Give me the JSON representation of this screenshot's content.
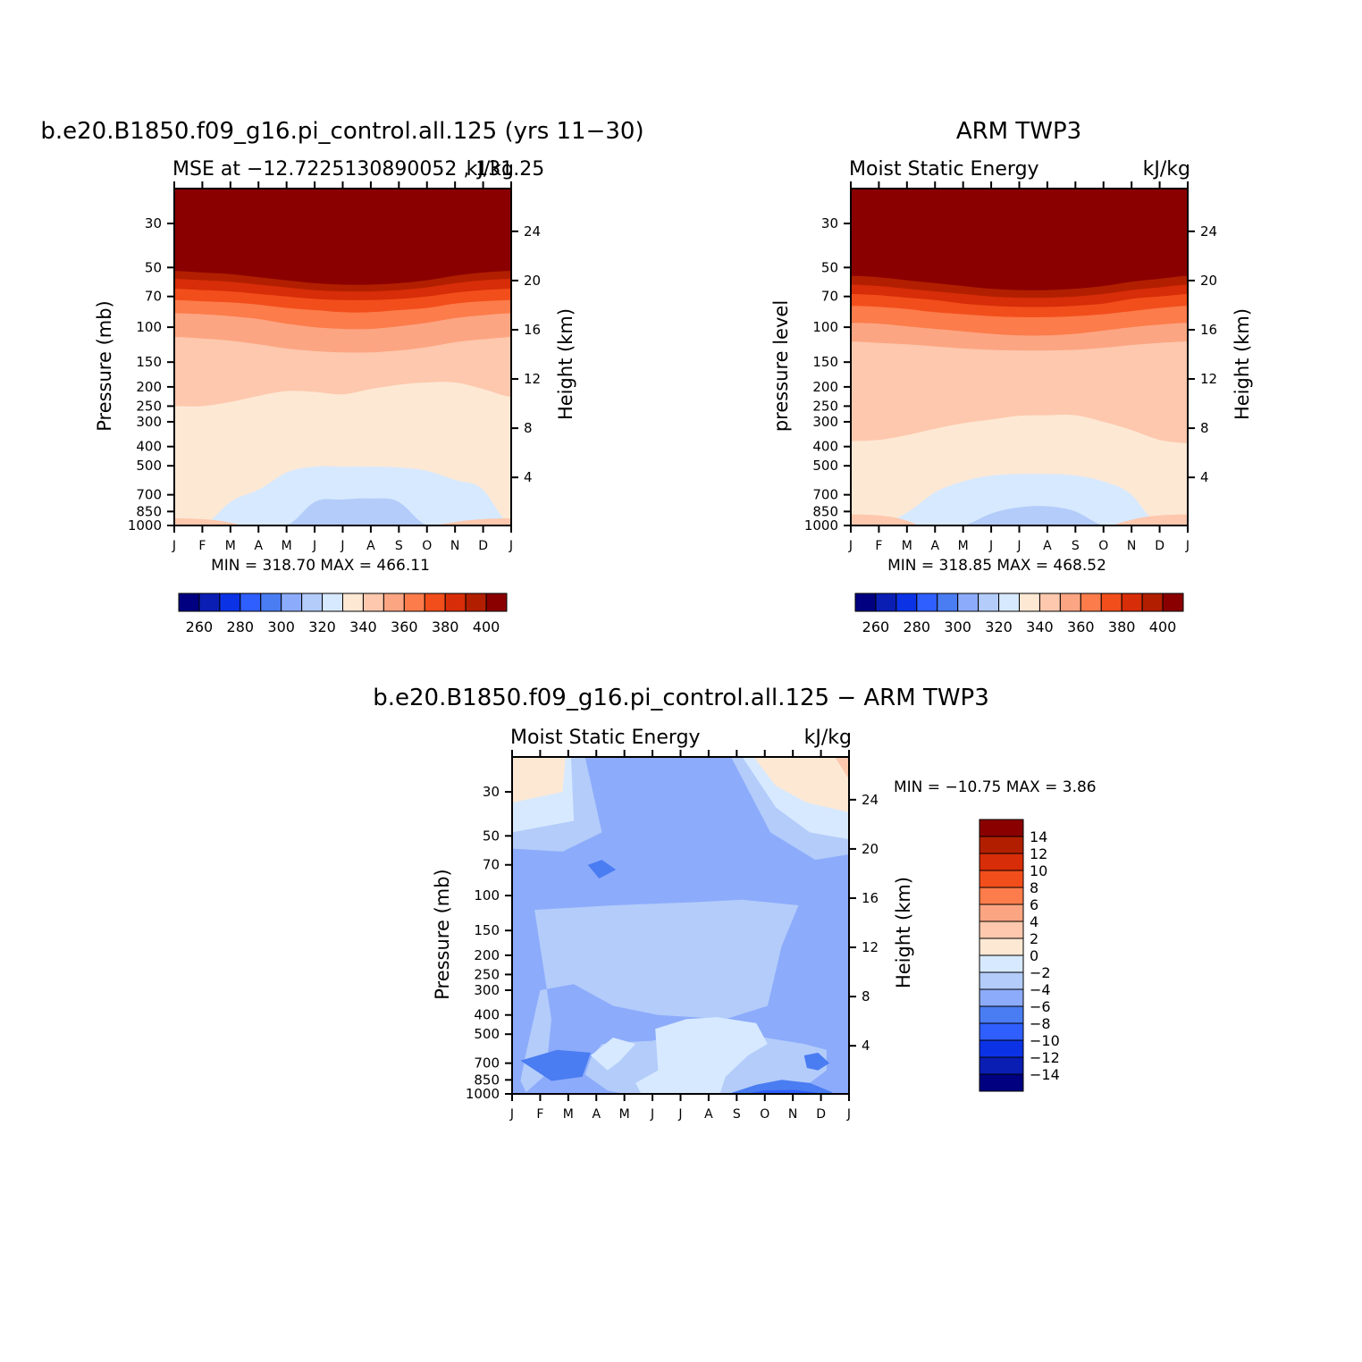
{
  "units": "kJ/kg",
  "months": [
    "J",
    "F",
    "M",
    "A",
    "M",
    "J",
    "J",
    "A",
    "S",
    "O",
    "N",
    "D",
    "J"
  ],
  "pressure_ticks": [
    30,
    50,
    70,
    100,
    150,
    200,
    250,
    300,
    400,
    500,
    700,
    850,
    1000
  ],
  "height_ticks": [
    4,
    8,
    12,
    16,
    20,
    24
  ],
  "chart_data": [
    {
      "type": "heatmap",
      "title": "b.e20.B1850.f09_g16.pi_control.all.125 (yrs 11−30)",
      "subtitle_left": "MSE at −12.7225130890052 , 131.25",
      "subtitle_right": "kJ/kg",
      "ylabel": "Pressure (mb)",
      "y2label": "Height (km)",
      "stats": "MIN = 318.70 MAX = 466.11",
      "min": 318.7,
      "max": 466.11,
      "ylim": [
        1000,
        20
      ],
      "y_scale": "log",
      "colorbar": {
        "levels": [
          250,
          260,
          270,
          280,
          290,
          300,
          310,
          320,
          330,
          340,
          350,
          360,
          370,
          380,
          390,
          400
        ],
        "labels": [
          "260",
          "280",
          "300",
          "320",
          "340",
          "360",
          "380",
          "400"
        ],
        "colors": [
          "#000080",
          "#0a1eb4",
          "#0b33e5",
          "#2f5fff",
          "#4a7cf2",
          "#8cabfb",
          "#b3ccfa",
          "#d7e9ff",
          "#fde8d4",
          "#fdc8ad",
          "#fca582",
          "#fc7c4b",
          "#f24e1b",
          "#d72d08",
          "#b21f00",
          "#8a0000"
        ],
        "placement": "bottom"
      },
      "fields": {
        "x": [
          0,
          1,
          2,
          3,
          4,
          5,
          6,
          7,
          8,
          9,
          10,
          11,
          12
        ],
        "boundary_values": [
          400,
          390,
          380,
          370,
          360,
          350,
          340,
          330,
          320
        ],
        "boundary_pressures": [
          [
            52,
            53,
            54,
            56,
            58,
            60,
            61,
            61,
            60,
            58,
            55,
            53,
            52
          ],
          [
            57,
            58,
            59,
            61,
            63,
            65,
            66,
            66,
            65,
            63,
            60,
            58,
            57
          ],
          [
            64,
            65,
            66,
            68,
            70,
            72,
            73,
            73,
            72,
            70,
            67,
            65,
            64
          ],
          [
            73,
            74,
            75,
            77,
            80,
            82,
            84,
            84,
            82,
            80,
            76,
            74,
            73
          ],
          [
            85,
            86,
            88,
            91,
            96,
            100,
            102,
            102,
            99,
            95,
            90,
            87,
            85
          ],
          [
            112,
            114,
            117,
            122,
            128,
            132,
            134,
            134,
            131,
            126,
            119,
            115,
            112
          ],
          [
            250,
            250,
            238,
            222,
            210,
            212,
            218,
            205,
            195,
            190,
            190,
            205,
            225
          ],
          [
            1000,
            1000,
            760,
            660,
            540,
            505,
            505,
            505,
            510,
            530,
            590,
            660,
            1000
          ],
          [
            1000,
            1000,
            1000,
            1000,
            1000,
            760,
            740,
            730,
            760,
            1000,
            1000,
            1000,
            1000
          ]
        ],
        "base_color_index": 8,
        "near_surface_warm_pressure": 920
      }
    },
    {
      "type": "heatmap",
      "title": "ARM TWP3",
      "subtitle_left": "Moist Static Energy",
      "subtitle_right": "kJ/kg",
      "ylabel": "pressure level",
      "y2label": "Height (km)",
      "stats": "MIN = 318.85 MAX = 468.52",
      "min": 318.85,
      "max": 468.52,
      "ylim": [
        1000,
        20
      ],
      "y_scale": "log",
      "colorbar": {
        "levels": [
          250,
          260,
          270,
          280,
          290,
          300,
          310,
          320,
          330,
          340,
          350,
          360,
          370,
          380,
          390,
          400
        ],
        "labels": [
          "260",
          "280",
          "300",
          "320",
          "340",
          "360",
          "380",
          "400"
        ],
        "colors": [
          "#000080",
          "#0a1eb4",
          "#0b33e5",
          "#2f5fff",
          "#4a7cf2",
          "#8cabfb",
          "#b3ccfa",
          "#d7e9ff",
          "#fde8d4",
          "#fdc8ad",
          "#fca582",
          "#fc7c4b",
          "#f24e1b",
          "#d72d08",
          "#b21f00",
          "#8a0000"
        ],
        "placement": "bottom"
      },
      "fields": {
        "x": [
          0,
          1,
          2,
          3,
          4,
          5,
          6,
          7,
          8,
          9,
          10,
          11,
          12
        ],
        "boundary_values": [
          400,
          390,
          380,
          370,
          360,
          350,
          340,
          330,
          320
        ],
        "boundary_pressures": [
          [
            55,
            56,
            58,
            60,
            62,
            64,
            65,
            65,
            64,
            62,
            59,
            57,
            55
          ],
          [
            61,
            62,
            64,
            66,
            68,
            70,
            71,
            71,
            70,
            68,
            65,
            63,
            61
          ],
          [
            68,
            69,
            71,
            73,
            76,
            78,
            79,
            79,
            78,
            76,
            72,
            70,
            68
          ],
          [
            78,
            79,
            81,
            84,
            86,
            88,
            89,
            89,
            88,
            86,
            83,
            80,
            78
          ],
          [
            95,
            96,
            99,
            102,
            105,
            108,
            110,
            110,
            108,
            104,
            100,
            97,
            95
          ],
          [
            118,
            120,
            122,
            125,
            128,
            130,
            131,
            131,
            130,
            127,
            123,
            120,
            118
          ],
          [
            375,
            370,
            350,
            325,
            305,
            292,
            280,
            278,
            278,
            300,
            330,
            370,
            385
          ],
          [
            1000,
            1000,
            860,
            680,
            600,
            560,
            550,
            550,
            560,
            600,
            700,
            1000,
            1000
          ],
          [
            1000,
            1000,
            1000,
            1000,
            1000,
            870,
            810,
            800,
            850,
            1000,
            1000,
            1000,
            1000
          ]
        ],
        "base_color_index": 8,
        "near_surface_warm_pressure": 880
      }
    },
    {
      "type": "heatmap",
      "title": "b.e20.B1850.f09_g16.pi_control.all.125 − ARM TWP3",
      "subtitle_left": "Moist Static Energy",
      "subtitle_right": "kJ/kg",
      "ylabel": "Pressure (mb)",
      "y2label": "Height (km)",
      "stats": "MIN = −10.75 MAX =    3.86",
      "min": -10.75,
      "max": 3.86,
      "ylim": [
        1000,
        20
      ],
      "y_scale": "log",
      "colorbar": {
        "levels": [
          -15,
          -14,
          -12,
          -10,
          -8,
          -6,
          -4,
          -2,
          0,
          2,
          4,
          6,
          8,
          10,
          12,
          14
        ],
        "labels": [
          "14",
          "12",
          "10",
          "8",
          "6",
          "4",
          "2",
          "0",
          "−2",
          "−4",
          "−6",
          "−8",
          "−10",
          "−12",
          "−14"
        ],
        "colors": [
          "#000080",
          "#0a1eb4",
          "#0b33e5",
          "#2f5fff",
          "#4a7cf2",
          "#8cabfb",
          "#b3ccfa",
          "#d7e9ff",
          "#fde8d4",
          "#fdc8ad",
          "#fca582",
          "#fc7c4b",
          "#f24e1b",
          "#d72d08",
          "#b21f00",
          "#8a0000"
        ],
        "placement": "right"
      },
      "fields": {
        "regions": [
          {
            "value": -5,
            "points": [
              [
                0,
                20
              ],
              [
                12,
                20
              ],
              [
                12,
                1000
              ],
              [
                0,
                1000
              ]
            ]
          },
          {
            "value": -3,
            "points": [
              [
                0,
                20
              ],
              [
                2.6,
                20
              ],
              [
                3.2,
                48
              ],
              [
                1.8,
                60
              ],
              [
                0,
                58
              ]
            ]
          },
          {
            "value": -3,
            "points": [
              [
                7.8,
                20
              ],
              [
                12,
                20
              ],
              [
                12,
                62
              ],
              [
                10.8,
                66
              ],
              [
                9.2,
                48
              ]
            ]
          },
          {
            "value": -3,
            "points": [
              [
                0.8,
                118
              ],
              [
                3.6,
                112
              ],
              [
                6.5,
                108
              ],
              [
                8.2,
                105
              ],
              [
                10.2,
                112
              ],
              [
                9.6,
                180
              ],
              [
                9.1,
                360
              ],
              [
                7.6,
                420
              ],
              [
                5.2,
                400
              ],
              [
                3.6,
                360
              ],
              [
                2.2,
                280
              ],
              [
                1.0,
                300
              ],
              [
                0.5,
                620
              ],
              [
                0.3,
                860
              ],
              [
                0.5,
                980
              ],
              [
                1.2,
                800
              ],
              [
                1.4,
                420
              ]
            ]
          },
          {
            "value": -3,
            "points": [
              [
                2.6,
                800
              ],
              [
                2.8,
                660
              ],
              [
                3.2,
                560
              ],
              [
                3.8,
                550
              ],
              [
                5.0,
                540
              ],
              [
                6.2,
                480
              ],
              [
                7.4,
                460
              ],
              [
                9.0,
                520
              ],
              [
                10.4,
                560
              ],
              [
                11.2,
                600
              ],
              [
                11.2,
                760
              ],
              [
                10.6,
                880
              ],
              [
                9.6,
                980
              ],
              [
                8.2,
                1000
              ],
              [
                4.0,
                1000
              ],
              [
                3.4,
                960
              ]
            ]
          },
          {
            "value": -1,
            "points": [
              [
                0,
                20
              ],
              [
                2.1,
                20
              ],
              [
                2.2,
                42
              ],
              [
                0,
                48
              ]
            ]
          },
          {
            "value": -1,
            "points": [
              [
                8.2,
                20
              ],
              [
                12,
                20
              ],
              [
                12,
                52
              ],
              [
                10.6,
                48
              ],
              [
                9.4,
                36
              ]
            ]
          },
          {
            "value": -1,
            "points": [
              [
                2.8,
                640
              ],
              [
                3.6,
                520
              ],
              [
                4.4,
                560
              ],
              [
                3.8,
                690
              ],
              [
                3.4,
                760
              ]
            ]
          },
          {
            "value": -1,
            "points": [
              [
                5.1,
                470
              ],
              [
                6.2,
                420
              ],
              [
                7.3,
                410
              ],
              [
                8.7,
                440
              ],
              [
                9.1,
                560
              ],
              [
                8.4,
                640
              ],
              [
                7.6,
                820
              ],
              [
                7.4,
                1000
              ],
              [
                4.6,
                1000
              ],
              [
                4.4,
                880
              ],
              [
                5.2,
                760
              ]
            ]
          },
          {
            "value": 1,
            "points": [
              [
                0,
                20
              ],
              [
                1.9,
                20
              ],
              [
                1.8,
                30
              ],
              [
                0,
                34
              ]
            ]
          },
          {
            "value": 1,
            "points": [
              [
                8.6,
                20
              ],
              [
                12,
                20
              ],
              [
                12,
                38
              ],
              [
                10.5,
                34
              ],
              [
                9.4,
                28
              ]
            ]
          },
          {
            "value": 3,
            "points": [
              [
                11.5,
                20
              ],
              [
                12,
                20
              ],
              [
                12,
                26
              ]
            ]
          },
          {
            "value": -7,
            "points": [
              [
                2.7,
                70
              ],
              [
                3.2,
                66
              ],
              [
                3.7,
                74
              ],
              [
                3.1,
                82
              ]
            ]
          },
          {
            "value": -7,
            "points": [
              [
                0.3,
                680
              ],
              [
                1.6,
                600
              ],
              [
                2.8,
                620
              ],
              [
                2.5,
                820
              ],
              [
                1.4,
                860
              ]
            ]
          },
          {
            "value": -7,
            "points": [
              [
                10.4,
                640
              ],
              [
                10.9,
                620
              ],
              [
                11.3,
                700
              ],
              [
                10.9,
                760
              ],
              [
                10.5,
                740
              ]
            ]
          },
          {
            "value": -7,
            "points": [
              [
                7.8,
                990
              ],
              [
                8.7,
                900
              ],
              [
                9.6,
                850
              ],
              [
                10.6,
                880
              ],
              [
                11.4,
                980
              ],
              [
                11.4,
                1000
              ],
              [
                7.8,
                1000
              ]
            ]
          },
          {
            "value": -9,
            "points": [
              [
                8.3,
                1000
              ],
              [
                9.0,
                960
              ],
              [
                10.1,
                955
              ],
              [
                10.9,
                990
              ],
              [
                10.9,
                1000
              ]
            ]
          }
        ]
      }
    }
  ]
}
